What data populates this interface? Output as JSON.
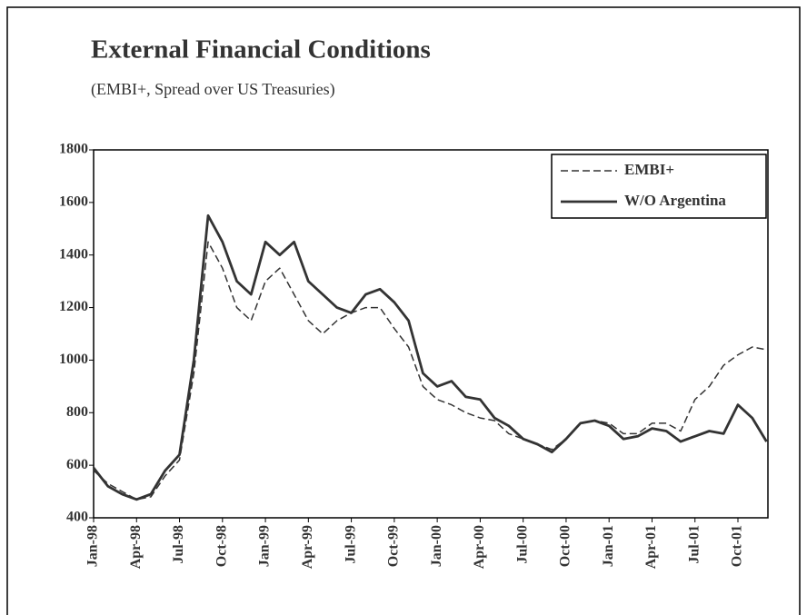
{
  "chart_data": {
    "type": "line",
    "title": "External Financial Conditions",
    "subtitle": "(EMBI+, Spread over US Treasuries)",
    "categories": [
      "Jan-98",
      null,
      null,
      "Apr-98",
      null,
      null,
      "Jul-98",
      null,
      null,
      "Oct-98",
      null,
      null,
      "Jan-99",
      null,
      null,
      "Apr-99",
      null,
      null,
      "Jul-99",
      null,
      null,
      "Oct-99",
      null,
      null,
      "Jan-00",
      null,
      null,
      "Apr-00",
      null,
      null,
      "Jul-00",
      null,
      null,
      "Oct-00",
      null,
      null,
      "Jan-01",
      null,
      null,
      "Apr-01",
      null,
      null,
      "Jul-01",
      null,
      null,
      "Oct-01",
      null,
      null
    ],
    "series": [
      {
        "name": "EMBI+",
        "color": "#333333",
        "dash": true,
        "values": [
          580,
          530,
          500,
          470,
          480,
          560,
          620,
          950,
          1450,
          1350,
          1200,
          1150,
          1300,
          1350,
          1250,
          1150,
          1100,
          1150,
          1180,
          1200,
          1200,
          1120,
          1050,
          900,
          850,
          830,
          800,
          780,
          770,
          720,
          700,
          680,
          660,
          700,
          760,
          770,
          760,
          720,
          720,
          760,
          760,
          730,
          850,
          900,
          980,
          1020,
          1050,
          1040
        ]
      },
      {
        "name": "W/O Argentina",
        "color": "#333333",
        "dash": false,
        "values": [
          590,
          520,
          490,
          470,
          490,
          580,
          640,
          1000,
          1550,
          1450,
          1300,
          1250,
          1450,
          1400,
          1450,
          1300,
          1250,
          1200,
          1180,
          1250,
          1270,
          1220,
          1150,
          950,
          900,
          920,
          860,
          850,
          780,
          750,
          700,
          680,
          650,
          700,
          760,
          770,
          750,
          700,
          710,
          740,
          730,
          690,
          710,
          730,
          720,
          830,
          780,
          690
        ]
      }
    ],
    "ylim": [
      400,
      1800
    ],
    "yticks": [
      400,
      600,
      800,
      1000,
      1200,
      1400,
      1600,
      1800
    ],
    "legend": "upper right"
  }
}
